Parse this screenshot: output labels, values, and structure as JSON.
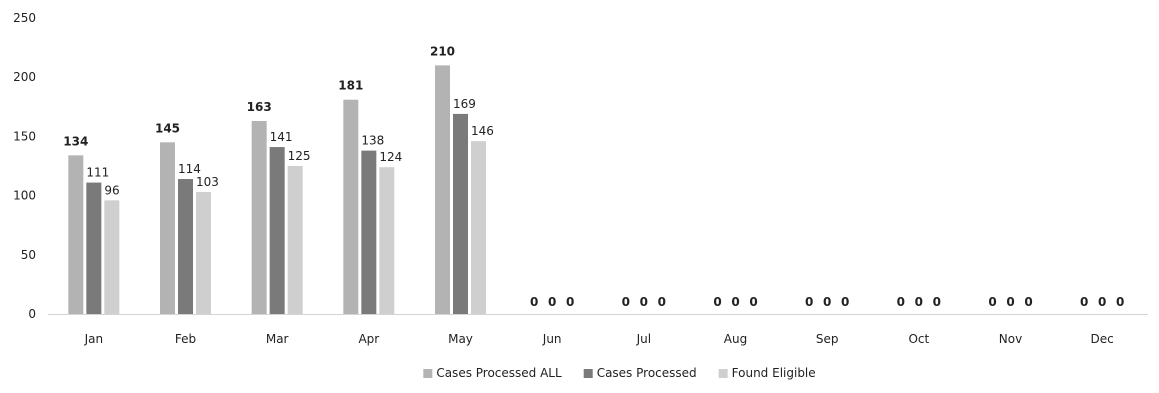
{
  "chart_data": {
    "type": "bar",
    "title": "",
    "xlabel": "",
    "ylabel": "",
    "ylim": [
      0,
      250
    ],
    "y_ticks": [
      0,
      50,
      100,
      150,
      200,
      250
    ],
    "grid": false,
    "legend_position": "bottom",
    "categories": [
      "Jan",
      "Feb",
      "Mar",
      "Apr",
      "May",
      "Jun",
      "Jul",
      "Aug",
      "Sep",
      "Oct",
      "Nov",
      "Dec"
    ],
    "series": [
      {
        "name": "Cases Processed ALL",
        "color": "#b3b3b3",
        "label_bold": true,
        "values": [
          134,
          145,
          163,
          181,
          210,
          0,
          0,
          0,
          0,
          0,
          0,
          0
        ]
      },
      {
        "name": "Cases Processed",
        "color": "#7a7a7a",
        "label_bold": false,
        "values": [
          111,
          114,
          141,
          138,
          169,
          0,
          0,
          0,
          0,
          0,
          0,
          0
        ]
      },
      {
        "name": "Found Eligible",
        "color": "#cfcfcf",
        "label_bold": false,
        "values": [
          96,
          103,
          125,
          124,
          146,
          0,
          0,
          0,
          0,
          0,
          0,
          0
        ]
      }
    ]
  }
}
